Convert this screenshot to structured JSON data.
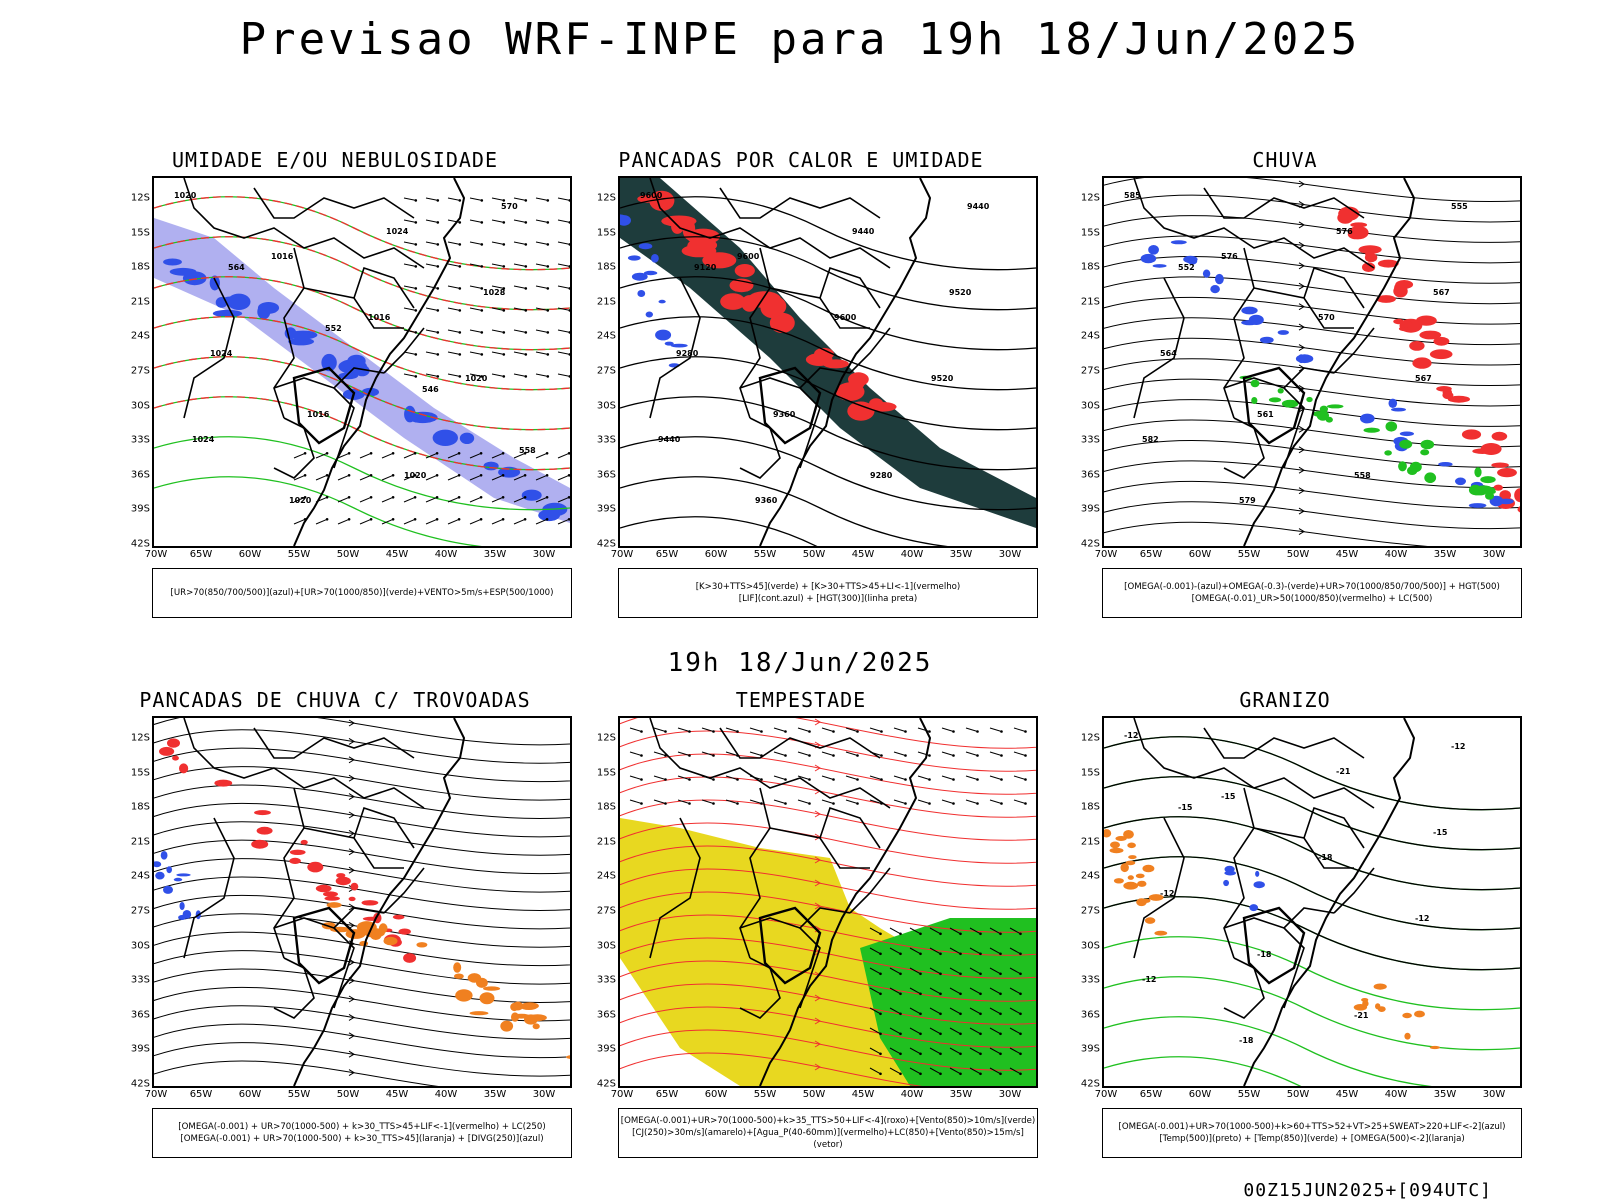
{
  "title": "Previsao WRF-INPE  para 19h 18/Jun/2025",
  "mid_time": "19h 18/Jun/2025",
  "footer": "00Z15JUN2025+[094UTC]",
  "lat_labels": [
    "12S",
    "15S",
    "18S",
    "21S",
    "24S",
    "27S",
    "30S",
    "33S",
    "36S",
    "39S",
    "42S"
  ],
  "lon_labels": [
    "70W",
    "65W",
    "60W",
    "55W",
    "50W",
    "45W",
    "40W",
    "35W",
    "30W"
  ],
  "colors": {
    "blue": "#3050e8",
    "green": "#20c020",
    "red": "#f03030",
    "orange": "#f08020",
    "yellow": "#e8d820",
    "dark": "#1e3c3c",
    "lavender": "#b0b0f0"
  },
  "panels": [
    {
      "id": "umidade",
      "title": "UMIDADE E/OU NEBULOSIDADE",
      "legend": [
        "[UR>70(850/700/500)](azul)+[UR>70(1000/850)](verde)+VENTO>5m/s+ESP(500/1000)"
      ],
      "contour_labels": [
        "1020",
        "1016",
        "1016",
        "1020",
        "1024",
        "1020",
        "1024",
        "1028",
        "1024",
        "1016",
        "1020",
        "570",
        "564",
        "552",
        "546",
        "558"
      ]
    },
    {
      "id": "pancadas_calor",
      "title": "PANCADAS POR CALOR E UMIDADE",
      "legend": [
        "[K>30+TTS>45](verde) + [K>30+TTS>45+LI<-1](vermelho)",
        "[LIF](cont.azul) + [HGT(300)](linha preta)"
      ],
      "contour_labels": [
        "9600",
        "9600",
        "9600",
        "9520",
        "9440",
        "9360",
        "9440",
        "9520",
        "9280",
        "9360",
        "9280",
        "9440",
        "9120"
      ]
    },
    {
      "id": "chuva",
      "title": "CHUVA",
      "legend": [
        "[OMEGA(-0.001)-(azul)+OMEGA(-0.3)-(verde)+UR>70(1000/850/700/500)] + HGT(500)",
        "[OMEGA(-0.01)_UR>50(1000/850)(vermelho) + LC(500)"
      ],
      "contour_labels": [
        "585",
        "576",
        "570",
        "567",
        "582",
        "579",
        "576",
        "567",
        "564",
        "561",
        "558",
        "555",
        "552"
      ]
    },
    {
      "id": "pancadas_trovoadas",
      "title": "PANCADAS DE CHUVA C/ TROVOADAS",
      "legend": [
        "[OMEGA(-0.001) + UR>70(1000-500) + k>30_TTS>45+LIF<-1](vermelho) + LC(250)",
        "[OMEGA(-0.001) + UR>70(1000-500) + k>30_TTS>45](laranja) + [DIVG(250)](azul)"
      ],
      "contour_labels": []
    },
    {
      "id": "tempestade",
      "title": "TEMPESTADE",
      "legend": [
        "[OMEGA(-0.001)+UR>70(1000-500)+k>35_TTS>50+LIF<-4](roxo)+[Vento(850)>10m/s](verde)",
        "[CJ(250)>30m/s](amarelo)+[Agua_P(40-60mm)](vermelho)+LC(850)+[Vento(850)>15m/s](vetor)"
      ],
      "contour_labels": []
    },
    {
      "id": "granizo",
      "title": "GRANIZO",
      "legend": [
        "[OMEGA(-0.001)+UR>70(1000-500)+k>60+TTS>52+VT>25+SWEAT>220+LIF<-2](azul)",
        "[Temp(500)](preto) + [Temp(850)](verde) + [OMEGA(500)<-2](laranja)"
      ],
      "contour_labels": [
        "-12",
        "-15",
        "-18",
        "-12",
        "-12",
        "-18",
        "-21",
        "-15",
        "-12",
        "-18",
        "-21",
        "-12",
        "-15"
      ]
    }
  ]
}
